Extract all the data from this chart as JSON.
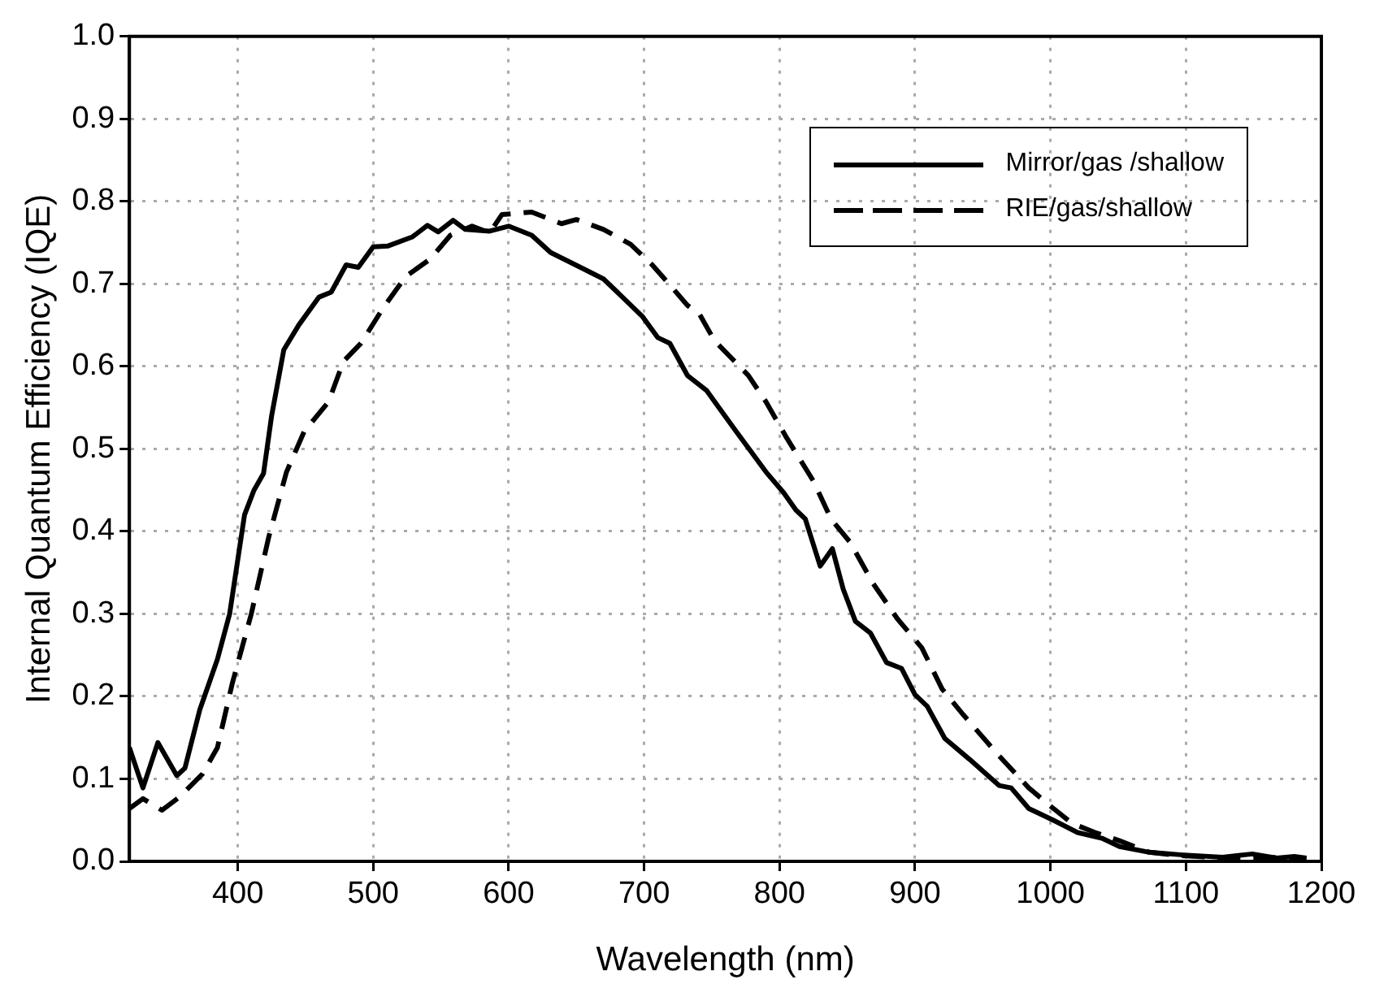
{
  "chart_data": {
    "type": "line",
    "xlabel": "Wavelength (nm)",
    "ylabel": "Internal Quantum Efficiency (IQE)",
    "xlim": [
      320,
      1200
    ],
    "xticks": [
      400,
      500,
      600,
      700,
      800,
      900,
      1000,
      1100,
      1200
    ],
    "ylim": [
      0,
      1
    ],
    "yticks": [
      {
        "value": 0,
        "label": "0.0"
      },
      {
        "value": 0.1,
        "label": "0.1"
      },
      {
        "value": 0.2,
        "label": "0.2"
      },
      {
        "value": 0.3,
        "label": "0.3"
      },
      {
        "value": 0.4,
        "label": "0.4"
      },
      {
        "value": 0.5,
        "label": "0.5"
      },
      {
        "value": 0.6,
        "label": "0.6"
      },
      {
        "value": 0.7,
        "label": "0.7"
      },
      {
        "value": 0.8,
        "label": "0.8"
      },
      {
        "value": 0.9,
        "label": "0.9"
      },
      {
        "value": 1,
        "label": "1.0"
      }
    ],
    "grid": true,
    "legend": "top right",
    "marker": "none",
    "series": [
      {
        "name": "Mirror/gas /shallow",
        "color": "#000000",
        "line_style": "solid",
        "x": [
          320,
          330,
          341,
          355,
          361,
          372,
          385,
          394,
          405,
          412,
          419,
          425,
          434,
          445,
          460,
          469,
          480,
          489,
          500,
          511,
          529,
          540,
          548,
          559,
          568,
          586,
          600,
          617,
          631,
          653,
          670,
          684,
          699,
          710,
          719,
          732,
          746,
          768,
          790,
          803,
          812,
          819,
          830,
          839,
          847,
          856,
          867,
          879,
          890,
          900,
          909,
          922,
          940,
          962,
          971,
          984,
          1002,
          1020,
          1038,
          1051,
          1073,
          1096,
          1127,
          1149,
          1167,
          1180,
          1189
        ],
        "values": [
          0.138,
          0.089,
          0.144,
          0.104,
          0.113,
          0.184,
          0.245,
          0.3,
          0.42,
          0.45,
          0.47,
          0.54,
          0.62,
          0.65,
          0.684,
          0.69,
          0.723,
          0.72,
          0.745,
          0.746,
          0.757,
          0.771,
          0.763,
          0.777,
          0.766,
          0.764,
          0.77,
          0.759,
          0.738,
          0.72,
          0.706,
          0.684,
          0.66,
          0.635,
          0.628,
          0.589,
          0.571,
          0.521,
          0.472,
          0.447,
          0.426,
          0.415,
          0.358,
          0.379,
          0.33,
          0.291,
          0.277,
          0.241,
          0.234,
          0.202,
          0.188,
          0.149,
          0.124,
          0.092,
          0.089,
          0.064,
          0.05,
          0.035,
          0.028,
          0.018,
          0.011,
          0.008,
          0.005,
          0.009,
          0.004,
          0.006,
          0.004
        ]
      },
      {
        "name": "RIE/gas/shallow",
        "color": "#000000",
        "line_style": "dashed",
        "x": [
          320,
          330,
          344,
          357,
          374,
          385,
          396,
          410,
          423,
          436,
          449,
          467,
          478,
          491,
          507,
          524,
          542,
          557,
          573,
          586,
          595,
          617,
          639,
          650,
          670,
          690,
          706,
          721,
          732,
          741,
          752,
          777,
          790,
          805,
          825,
          838,
          852,
          869,
          887,
          905,
          920,
          936,
          962,
          984,
          1000,
          1016,
          1033,
          1051,
          1073,
          1096,
          1131,
          1153,
          1180,
          1189
        ],
        "values": [
          0.064,
          0.076,
          0.062,
          0.078,
          0.106,
          0.138,
          0.216,
          0.3,
          0.394,
          0.472,
          0.521,
          0.557,
          0.606,
          0.628,
          0.67,
          0.709,
          0.73,
          0.759,
          0.77,
          0.762,
          0.784,
          0.787,
          0.773,
          0.778,
          0.766,
          0.748,
          0.723,
          0.695,
          0.674,
          0.663,
          0.631,
          0.589,
          0.557,
          0.514,
          0.461,
          0.415,
          0.387,
          0.337,
          0.294,
          0.259,
          0.209,
          0.177,
          0.128,
          0.089,
          0.067,
          0.046,
          0.035,
          0.025,
          0.011,
          0.007,
          0.004,
          0.005,
          0.004,
          0.004
        ]
      }
    ]
  }
}
